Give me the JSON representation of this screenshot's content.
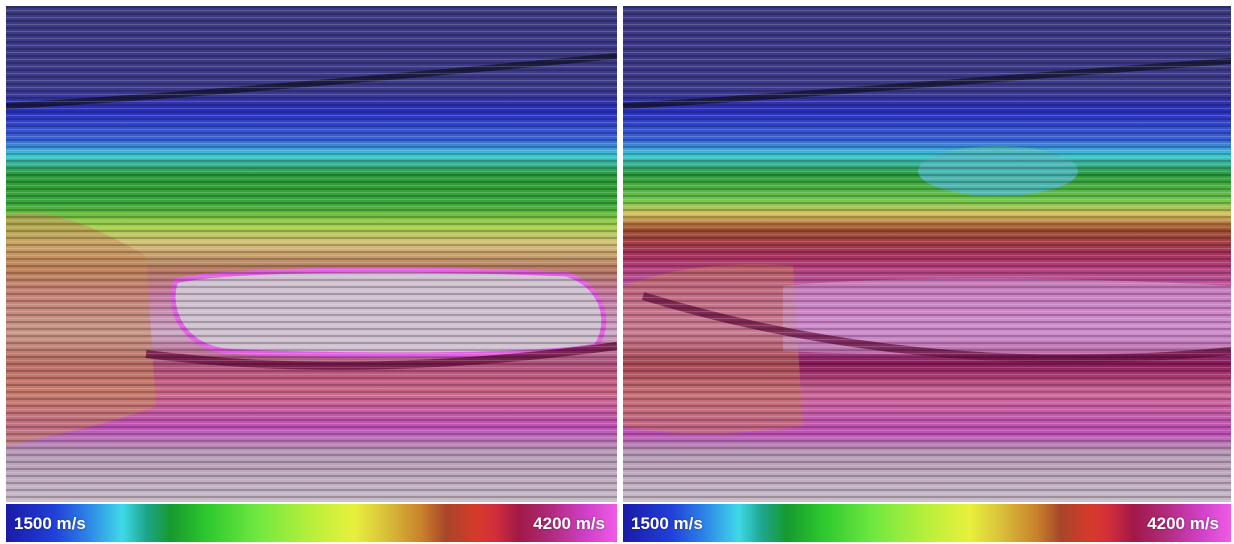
{
  "panels": [
    {
      "id": "left",
      "colorbar": {
        "min_label": "1500 m/s",
        "max_label": "4200 m/s"
      }
    },
    {
      "id": "right",
      "colorbar": {
        "min_label": "1500 m/s",
        "max_label": "4200 m/s"
      }
    }
  ],
  "colors": {
    "water": "#3c3a82",
    "low_velocity": "#1a1aa8",
    "high_velocity": "#f05be6",
    "salt_body": "#c9b7c9"
  }
}
